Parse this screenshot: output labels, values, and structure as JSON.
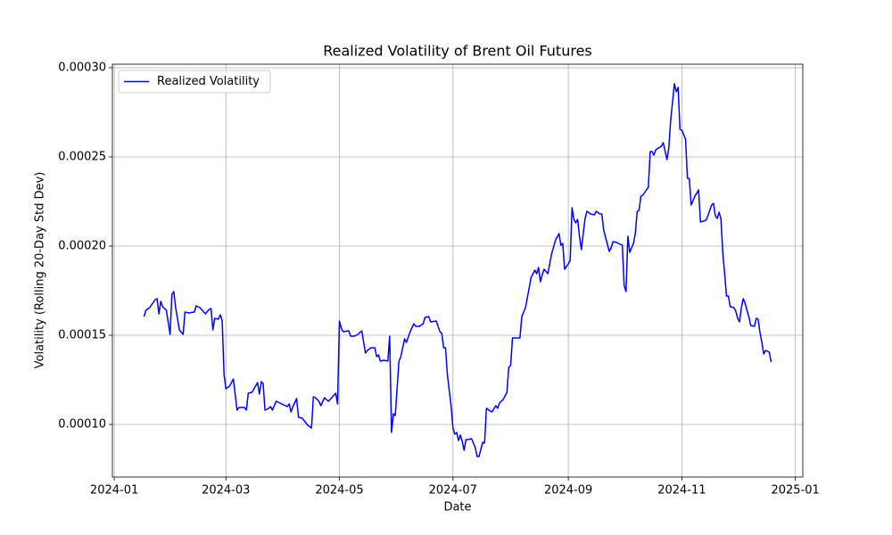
{
  "chart_data": {
    "type": "line",
    "title": "Realized Volatility of Brent Oil Futures",
    "x_label": "Date",
    "y_label": "Volatility (Rolling 20-Day Std Dev)",
    "x": [
      "2024-01-17",
      "2024-01-18",
      "2024-01-20",
      "2024-01-23",
      "2024-01-24",
      "2024-01-25",
      "2024-01-26",
      "2024-01-27",
      "2024-01-29",
      "2024-01-31",
      "2024-02-01",
      "2024-02-02",
      "2024-02-03",
      "2024-02-05",
      "2024-02-07",
      "2024-02-08",
      "2024-02-10",
      "2024-02-13",
      "2024-02-14",
      "2024-02-16",
      "2024-02-19",
      "2024-02-21",
      "2024-02-22",
      "2024-02-23",
      "2024-02-24",
      "2024-02-26",
      "2024-02-27",
      "2024-02-28",
      "2024-02-29",
      "2024-03-01",
      "2024-03-03",
      "2024-03-05",
      "2024-03-07",
      "2024-03-08",
      "2024-03-11",
      "2024-03-12",
      "2024-03-13",
      "2024-03-15",
      "2024-03-18",
      "2024-03-19",
      "2024-03-20",
      "2024-03-21",
      "2024-03-22",
      "2024-03-24",
      "2024-03-25",
      "2024-03-26",
      "2024-03-28",
      "2024-03-29",
      "2024-04-01",
      "2024-04-03",
      "2024-04-04",
      "2024-04-05",
      "2024-04-06",
      "2024-04-08",
      "2024-04-09",
      "2024-04-11",
      "2024-04-14",
      "2024-04-16",
      "2024-04-17",
      "2024-04-18",
      "2024-04-20",
      "2024-04-21",
      "2024-04-23",
      "2024-04-25",
      "2024-04-26",
      "2024-04-29",
      "2024-04-30",
      "2024-05-01",
      "2024-05-02",
      "2024-05-03",
      "2024-05-06",
      "2024-05-07",
      "2024-05-09",
      "2024-05-11",
      "2024-05-13",
      "2024-05-15",
      "2024-05-16",
      "2024-05-18",
      "2024-05-20",
      "2024-05-21",
      "2024-05-22",
      "2024-05-23",
      "2024-05-25",
      "2024-05-27",
      "2024-05-28",
      "2024-05-29",
      "2024-05-30",
      "2024-05-31",
      "2024-06-02",
      "2024-06-03",
      "2024-06-05",
      "2024-06-06",
      "2024-06-08",
      "2024-06-10",
      "2024-06-11",
      "2024-06-13",
      "2024-06-15",
      "2024-06-16",
      "2024-06-18",
      "2024-06-19",
      "2024-06-22",
      "2024-06-24",
      "2024-06-25",
      "2024-06-26",
      "2024-06-27",
      "2024-06-28",
      "2024-06-30",
      "2024-07-01",
      "2024-07-02",
      "2024-07-03",
      "2024-07-04",
      "2024-07-05",
      "2024-07-06",
      "2024-07-07",
      "2024-07-08",
      "2024-07-09",
      "2024-07-11",
      "2024-07-13",
      "2024-07-14",
      "2024-07-15",
      "2024-07-17",
      "2024-07-18",
      "2024-07-19",
      "2024-07-21",
      "2024-07-22",
      "2024-07-24",
      "2024-07-25",
      "2024-07-26",
      "2024-07-28",
      "2024-07-30",
      "2024-07-31",
      "2024-08-01",
      "2024-08-02",
      "2024-08-06",
      "2024-08-07",
      "2024-08-08",
      "2024-08-09",
      "2024-08-12",
      "2024-08-14",
      "2024-08-15",
      "2024-08-16",
      "2024-08-17",
      "2024-08-18",
      "2024-08-19",
      "2024-08-21",
      "2024-08-23",
      "2024-08-25",
      "2024-08-27",
      "2024-08-28",
      "2024-08-29",
      "2024-08-30",
      "2024-09-01",
      "2024-09-02",
      "2024-09-03",
      "2024-09-04",
      "2024-09-05",
      "2024-09-06",
      "2024-09-07",
      "2024-09-08",
      "2024-09-10",
      "2024-09-11",
      "2024-09-13",
      "2024-09-15",
      "2024-09-16",
      "2024-09-18",
      "2024-09-19",
      "2024-09-20",
      "2024-09-23",
      "2024-09-24",
      "2024-09-25",
      "2024-09-27",
      "2024-09-30",
      "2024-10-01",
      "2024-10-02",
      "2024-10-03",
      "2024-10-04",
      "2024-10-06",
      "2024-10-07",
      "2024-10-08",
      "2024-10-09",
      "2024-10-10",
      "2024-10-11",
      "2024-10-14",
      "2024-10-15",
      "2024-10-16",
      "2024-10-17",
      "2024-10-18",
      "2024-10-21",
      "2024-10-22",
      "2024-10-24",
      "2024-10-25",
      "2024-10-26",
      "2024-10-28",
      "2024-10-29",
      "2024-10-30",
      "2024-10-31",
      "2024-11-01",
      "2024-11-02",
      "2024-11-03",
      "2024-11-04",
      "2024-11-05",
      "2024-11-06",
      "2024-11-08",
      "2024-11-10",
      "2024-11-11",
      "2024-11-14",
      "2024-11-15",
      "2024-11-17",
      "2024-11-18",
      "2024-11-19",
      "2024-11-20",
      "2024-11-21",
      "2024-11-22",
      "2024-11-23",
      "2024-11-24",
      "2024-11-25",
      "2024-11-26",
      "2024-11-27",
      "2024-11-29",
      "2024-11-30",
      "2024-12-01",
      "2024-12-02",
      "2024-12-03",
      "2024-12-04",
      "2024-12-05",
      "2024-12-06",
      "2024-12-07",
      "2024-12-08",
      "2024-12-10",
      "2024-12-11",
      "2024-12-12",
      "2024-12-13",
      "2024-12-14",
      "2024-12-15",
      "2024-12-16",
      "2024-12-18",
      "2024-12-19"
    ],
    "series": [
      {
        "name": "Realized Volatility",
        "color": "#0000ff",
        "values": [
          0.0001605,
          0.000164,
          0.0001655,
          0.00017,
          0.0001705,
          0.000162,
          0.000169,
          0.000166,
          0.000164,
          0.0001505,
          0.000173,
          0.0001745,
          0.0001655,
          0.000153,
          0.0001505,
          0.000163,
          0.0001625,
          0.000163,
          0.0001665,
          0.0001655,
          0.000162,
          0.0001645,
          0.000165,
          0.000153,
          0.0001595,
          0.000159,
          0.0001615,
          0.000158,
          0.000128,
          0.00012,
          0.0001215,
          0.0001255,
          0.000108,
          0.0001095,
          0.0001095,
          0.000108,
          0.0001175,
          0.000118,
          0.0001235,
          0.000117,
          0.000124,
          0.000123,
          0.000108,
          0.000109,
          0.00011,
          0.000108,
          0.000113,
          0.0001125,
          0.000111,
          0.00011,
          0.0001115,
          0.000107,
          0.00011,
          0.0001145,
          0.000104,
          0.0001035,
          9.95e-05,
          9.8e-05,
          0.0001155,
          0.000115,
          0.000113,
          0.0001105,
          0.000115,
          0.000113,
          0.000114,
          0.0001175,
          0.0001115,
          0.000158,
          0.000154,
          0.000152,
          0.0001525,
          0.0001495,
          0.0001495,
          0.0001505,
          0.0001525,
          0.00014,
          0.0001415,
          0.000143,
          0.000143,
          0.000138,
          0.000139,
          0.0001355,
          0.000136,
          0.0001355,
          0.0001495,
          9.55e-05,
          0.000106,
          0.000105,
          0.0001355,
          0.000138,
          0.000148,
          0.000146,
          0.000152,
          0.0001565,
          0.000155,
          0.000155,
          0.0001565,
          0.00016,
          0.0001605,
          0.0001575,
          0.000158,
          0.000152,
          0.000151,
          0.000143,
          0.000143,
          0.000128,
          0.0001105,
          9.8e-05,
          9.45e-05,
          9.55e-05,
          9.1e-05,
          9.4e-05,
          9.05e-05,
          8.55e-05,
          9.15e-05,
          9.15e-05,
          9.2e-05,
          8.7e-05,
          8.2e-05,
          8.2e-05,
          9e-05,
          8.95e-05,
          0.000109,
          0.0001075,
          0.000107,
          0.0001105,
          0.000109,
          0.000112,
          0.000114,
          0.000118,
          0.000132,
          0.000133,
          0.0001485,
          0.0001485,
          0.0001605,
          0.000163,
          0.0001655,
          0.0001825,
          0.0001865,
          0.0001845,
          0.000188,
          0.00018,
          0.000184,
          0.000187,
          0.0001845,
          0.0001955,
          0.000203,
          0.000207,
          0.0002005,
          0.0002015,
          0.000187,
          0.00019,
          0.000192,
          0.0002215,
          0.000215,
          0.000213,
          0.000215,
          0.0002055,
          0.000198,
          0.0002155,
          0.0002195,
          0.000218,
          0.0002175,
          0.0002195,
          0.000218,
          0.000218,
          0.000209,
          0.000197,
          0.000199,
          0.0002025,
          0.000202,
          0.0002005,
          0.000178,
          0.0001745,
          0.0002055,
          0.0001965,
          0.0002015,
          0.000207,
          0.0002195,
          0.00022,
          0.000228,
          0.0002285,
          0.000233,
          0.000253,
          0.000253,
          0.000251,
          0.000254,
          0.000256,
          0.000258,
          0.0002485,
          0.000255,
          0.0002705,
          0.000291,
          0.0002865,
          0.000289,
          0.0002655,
          0.000265,
          0.0002625,
          0.00026,
          0.000238,
          0.000238,
          0.000223,
          0.000228,
          0.0002315,
          0.0002135,
          0.0002145,
          0.000217,
          0.000223,
          0.000224,
          0.000217,
          0.0002155,
          0.000219,
          0.0002155,
          0.0001965,
          0.0001845,
          0.000172,
          0.000172,
          0.000166,
          0.0001655,
          0.0001635,
          0.0001595,
          0.0001575,
          0.0001655,
          0.0001705,
          0.000168,
          0.000164,
          0.0001605,
          0.0001555,
          0.000155,
          0.0001595,
          0.000159,
          0.0001515,
          0.000146,
          0.0001395,
          0.0001415,
          0.0001405,
          0.000135
        ]
      }
    ],
    "xlim": [
      "2023-12-31",
      "2025-01-05"
    ],
    "xticks": [
      {
        "value": "2024-01-01",
        "label": "2024-01"
      },
      {
        "value": "2024-03-01",
        "label": "2024-03"
      },
      {
        "value": "2024-05-01",
        "label": "2024-05"
      },
      {
        "value": "2024-07-01",
        "label": "2024-07"
      },
      {
        "value": "2024-09-01",
        "label": "2024-09"
      },
      {
        "value": "2024-11-01",
        "label": "2024-11"
      },
      {
        "value": "2025-01-01",
        "label": "2025-01"
      }
    ],
    "ylim": [
      7.05e-05,
      0.000302
    ],
    "yticks": [
      {
        "value": 0.0001,
        "label": "0.00010"
      },
      {
        "value": 0.00015,
        "label": "0.00015"
      },
      {
        "value": 0.0002,
        "label": "0.00020"
      },
      {
        "value": 0.00025,
        "label": "0.00025"
      },
      {
        "value": 0.0003,
        "label": "0.00030"
      }
    ],
    "grid": true,
    "legend": "upper left"
  }
}
